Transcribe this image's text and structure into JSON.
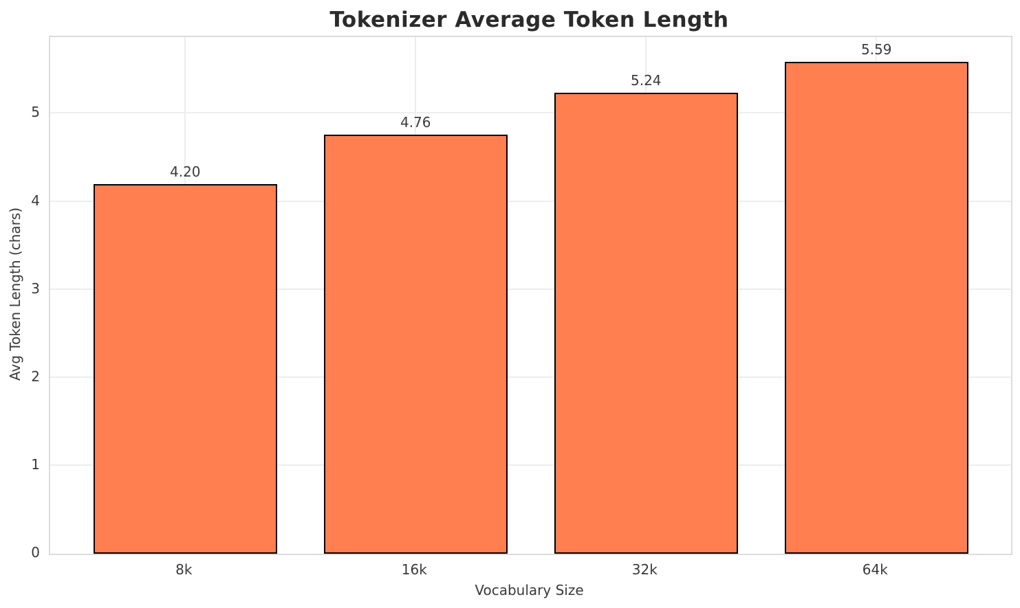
{
  "chart_data": {
    "type": "bar",
    "title": "Tokenizer Average Token Length",
    "xlabel": "Vocabulary Size",
    "ylabel": "Avg Token Length (chars)",
    "categories": [
      "8k",
      "16k",
      "32k",
      "64k"
    ],
    "values": [
      4.2,
      4.76,
      5.24,
      5.59
    ],
    "value_labels": [
      "4.20",
      "4.76",
      "5.24",
      "5.59"
    ],
    "yticks": [
      0,
      1,
      2,
      3,
      4,
      5
    ],
    "ytick_labels": [
      "0",
      "1",
      "2",
      "3",
      "4",
      "5"
    ],
    "ylim": [
      0,
      5.87
    ],
    "grid": true,
    "legend": null,
    "colors": {
      "bar_fill": "#FF7F50",
      "bar_edge": "#000000",
      "grid_line": "#ededed",
      "spine": "#dcdcdc",
      "text": "#3a3a3a",
      "title_text": "#2b2b2b",
      "background": "#ffffff"
    }
  }
}
